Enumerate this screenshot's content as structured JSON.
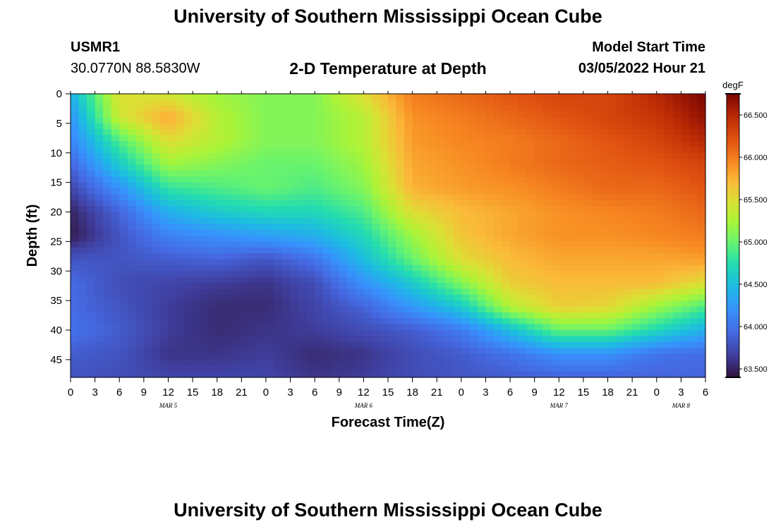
{
  "header": {
    "title": "University of Southern Mississippi Ocean Cube",
    "station": "USMR1",
    "coords": "30.0770N  88.5830W",
    "subtitle": "2-D Temperature at Depth",
    "model_start_label": "Model Start Time",
    "model_start_value": "03/05/2022 Hour 21"
  },
  "footer": {
    "title": "University of Southern Mississippi Ocean Cube"
  },
  "chart_data": {
    "type": "heatmap",
    "title": "2-D Temperature at Depth",
    "xlabel": "Forecast Time(Z)",
    "ylabel": "Depth (ft)",
    "x_tick_labels": [
      "0",
      "3",
      "6",
      "9",
      "12",
      "15",
      "18",
      "21",
      "0",
      "3",
      "6",
      "9",
      "12",
      "15",
      "18",
      "21",
      "0",
      "3",
      "6",
      "9",
      "12",
      "15",
      "18",
      "21",
      "0",
      "3",
      "6"
    ],
    "x_date_labels": [
      {
        "label": "MAR 5",
        "tick_index": 4
      },
      {
        "label": "MAR 6",
        "tick_index": 12
      },
      {
        "label": "MAR 7",
        "tick_index": 20
      },
      {
        "label": "MAR 8",
        "tick_index": 25
      }
    ],
    "xlim_hours": [
      0,
      78
    ],
    "y_ticks": [
      0,
      5,
      10,
      15,
      20,
      25,
      30,
      35,
      40,
      45
    ],
    "ylim": [
      0,
      48
    ],
    "colorbar": {
      "unit": "degF",
      "ticks": [
        "63.500",
        "64.000",
        "64.500",
        "65.000",
        "65.500",
        "66.000",
        "66.500"
      ],
      "range": [
        63.4,
        66.75
      ]
    },
    "grid_hours": [
      0,
      6,
      12,
      18,
      24,
      30,
      36,
      42,
      48,
      54,
      60,
      66,
      72,
      78
    ],
    "grid_depths": [
      0,
      4,
      8,
      12,
      16,
      20,
      24,
      28,
      32,
      36,
      40,
      44,
      48
    ],
    "values": [
      [
        64.4,
        65.5,
        65.4,
        65.2,
        65.1,
        65.1,
        65.5,
        66.0,
        66.1,
        66.2,
        66.3,
        66.3,
        66.5,
        66.75
      ],
      [
        64.2,
        65.4,
        65.8,
        65.3,
        65.1,
        65.1,
        65.3,
        65.9,
        66.0,
        66.1,
        66.2,
        66.3,
        66.4,
        66.65
      ],
      [
        64.1,
        64.9,
        65.5,
        65.3,
        65.1,
        65.1,
        65.3,
        65.85,
        65.95,
        66.0,
        66.1,
        66.2,
        66.3,
        66.5
      ],
      [
        63.9,
        64.6,
        65.2,
        65.1,
        65.0,
        65.0,
        65.2,
        65.8,
        65.9,
        66.0,
        66.1,
        66.15,
        66.2,
        66.3
      ],
      [
        63.7,
        64.2,
        64.8,
        64.9,
        65.0,
        64.9,
        65.1,
        65.75,
        65.85,
        65.9,
        66.0,
        66.1,
        66.1,
        66.2
      ],
      [
        63.5,
        63.9,
        64.4,
        64.6,
        64.7,
        64.7,
        64.9,
        65.5,
        65.7,
        65.8,
        65.9,
        65.95,
        66.0,
        66.1
      ],
      [
        63.45,
        63.8,
        64.1,
        64.2,
        64.3,
        64.4,
        64.7,
        65.2,
        65.65,
        65.8,
        65.9,
        65.9,
        65.95,
        66.0
      ],
      [
        63.8,
        63.8,
        63.85,
        63.9,
        63.8,
        64.0,
        64.5,
        65.0,
        65.5,
        65.7,
        65.8,
        65.8,
        65.8,
        65.85
      ],
      [
        63.95,
        63.75,
        63.7,
        63.65,
        63.6,
        63.75,
        64.2,
        64.6,
        65.1,
        65.6,
        65.7,
        65.7,
        65.7,
        65.5
      ],
      [
        63.95,
        63.8,
        63.65,
        63.55,
        63.55,
        63.7,
        63.9,
        64.25,
        64.6,
        65.3,
        65.6,
        65.55,
        65.2,
        64.9
      ],
      [
        64.0,
        63.85,
        63.65,
        63.55,
        63.6,
        63.65,
        63.75,
        63.85,
        64.05,
        64.5,
        65.0,
        65.0,
        64.7,
        64.4
      ],
      [
        63.85,
        63.8,
        63.6,
        63.6,
        63.65,
        63.55,
        63.6,
        63.75,
        63.85,
        64.0,
        64.2,
        64.2,
        64.0,
        63.95
      ],
      [
        63.8,
        63.75,
        63.7,
        63.7,
        63.7,
        63.6,
        63.65,
        63.75,
        63.8,
        63.85,
        63.9,
        63.9,
        63.9,
        63.9
      ]
    ]
  }
}
